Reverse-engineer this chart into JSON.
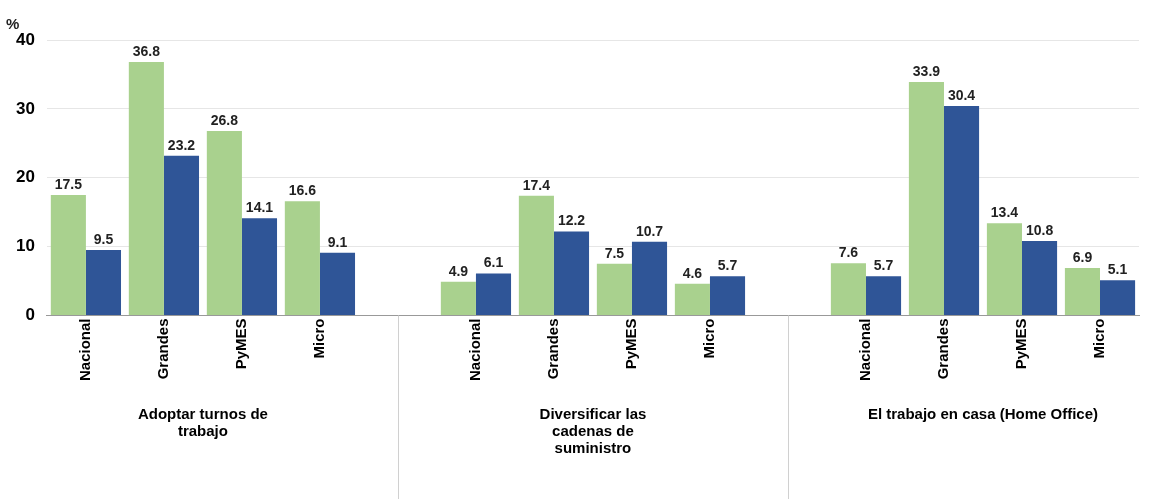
{
  "chart_data": {
    "type": "bar",
    "ylabel": "%",
    "categories": [
      "Nacional",
      "Grandes",
      "PyMES",
      "Micro",
      null,
      "Nacional",
      "Grandes",
      "PyMES",
      "Micro",
      null,
      "Nacional",
      "Grandes",
      "PyMES",
      "Micro"
    ],
    "series": [
      {
        "color": "#a9d18e",
        "values": [
          17.5,
          36.8,
          26.8,
          16.6,
          null,
          4.9,
          17.4,
          7.5,
          4.6,
          null,
          7.6,
          33.9,
          13.4,
          6.9
        ]
      },
      {
        "color": "#2f5597",
        "values": [
          9.5,
          23.2,
          14.1,
          9.1,
          null,
          6.1,
          12.2,
          10.7,
          5.7,
          null,
          5.7,
          30.4,
          10.8,
          5.1
        ]
      }
    ],
    "ylim": [
      0,
      40
    ],
    "yticks": [
      0,
      10,
      20,
      30,
      40
    ],
    "grid": "y",
    "legend": false,
    "data_labels": true,
    "annotations": [
      "Adoptar turnos de trabajo",
      "Diversificar las cadenas de suministro",
      "El trabajo en casa (Home Office)"
    ]
  }
}
